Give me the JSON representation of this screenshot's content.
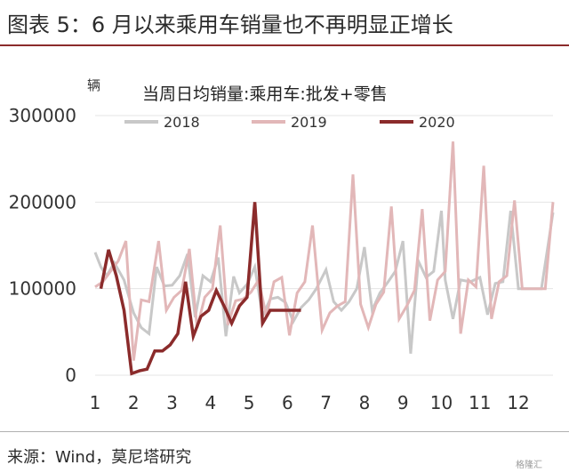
{
  "header": {
    "title": "图表 5：6 月以来乘用车销量也不再明显正增长"
  },
  "footer": {
    "source": "来源：Wind，莫尼塔研究"
  },
  "watermark": "格隆汇",
  "chart_data": {
    "type": "line",
    "title": "当周日均销量:乘用车:批发+零售",
    "ylabel": "辆",
    "ylim": [
      0,
      300000
    ],
    "yticks": [
      0,
      100000,
      200000,
      300000
    ],
    "ytick_labels": [
      "0",
      "100000",
      "200000",
      "300000"
    ],
    "xlim": [
      1,
      12.9
    ],
    "xticks": [
      1,
      2,
      3,
      4,
      5,
      6,
      7,
      8,
      9,
      10,
      11,
      12
    ],
    "xtick_labels": [
      "1",
      "2",
      "3",
      "4",
      "5",
      "6",
      "7",
      "8",
      "9",
      "10",
      "11",
      "12"
    ],
    "legend_position": "top",
    "series": [
      {
        "name": "2018",
        "color": "#c8c8c8",
        "x": [
          1,
          1.15,
          1.3,
          1.5,
          1.75,
          2.0,
          2.2,
          2.4,
          2.6,
          2.8,
          3.0,
          3.2,
          3.4,
          3.6,
          3.8,
          4.0,
          4.2,
          4.4,
          4.6,
          4.75,
          4.95,
          5.15,
          5.35,
          5.55,
          5.75,
          5.95,
          6.15,
          6.35,
          6.55,
          6.75,
          7.0,
          7.2,
          7.4,
          7.6,
          7.8,
          8.0,
          8.2,
          8.4,
          8.6,
          8.8,
          9.0,
          9.2,
          9.4,
          9.6,
          9.8,
          10.0,
          10.1,
          10.3,
          10.5,
          10.75,
          11.0,
          11.2,
          11.4,
          11.6,
          11.8,
          12.0,
          12.2,
          12.4,
          12.6,
          12.9
        ],
        "values": [
          142000,
          125000,
          115000,
          130000,
          110000,
          72000,
          55000,
          48000,
          125000,
          103000,
          104000,
          115000,
          140000,
          67000,
          115000,
          108000,
          136000,
          45000,
          114000,
          95000,
          105000,
          125000,
          68000,
          88000,
          90000,
          84000,
          62000,
          78000,
          87000,
          100000,
          122000,
          85000,
          75000,
          85000,
          100000,
          148000,
          75000,
          95000,
          107000,
          120000,
          155000,
          25000,
          132000,
          113000,
          120000,
          190000,
          110000,
          65000,
          110000,
          108000,
          113000,
          70000,
          106000,
          108000,
          190000,
          100000,
          100000,
          100000,
          100000,
          188000
        ]
      },
      {
        "name": "2019",
        "color": "#e2b7b8",
        "x": [
          1,
          1.2,
          1.4,
          1.6,
          1.8,
          2.0,
          2.2,
          2.4,
          2.65,
          2.85,
          3.05,
          3.25,
          3.45,
          3.65,
          3.85,
          4.05,
          4.25,
          4.45,
          4.65,
          4.85,
          5.05,
          5.25,
          5.45,
          5.65,
          5.85,
          6.05,
          6.25,
          6.45,
          6.65,
          6.9,
          7.1,
          7.3,
          7.5,
          7.7,
          7.9,
          8.1,
          8.3,
          8.5,
          8.7,
          8.9,
          9.1,
          9.3,
          9.5,
          9.7,
          9.9,
          10.1,
          10.3,
          10.5,
          10.7,
          10.9,
          11.1,
          11.3,
          11.5,
          11.7,
          11.9,
          12.1,
          12.3,
          12.5,
          12.7,
          12.9
        ],
        "values": [
          102000,
          108000,
          120000,
          132000,
          155000,
          17000,
          87000,
          85000,
          155000,
          75000,
          90000,
          98000,
          146000,
          55000,
          90000,
          100000,
          173000,
          58000,
          86000,
          88000,
          96000,
          110000,
          68000,
          108000,
          113000,
          46000,
          95000,
          108000,
          173000,
          52000,
          72000,
          80000,
          85000,
          232000,
          82000,
          55000,
          82000,
          96000,
          195000,
          65000,
          80000,
          98000,
          192000,
          63000,
          110000,
          120000,
          270000,
          48000,
          110000,
          102000,
          242000,
          65000,
          108000,
          115000,
          202000,
          100000,
          100000,
          100000,
          100000,
          200000
        ]
      },
      {
        "name": "2020",
        "color": "#8b2b2b",
        "x": [
          1.15,
          1.35,
          1.55,
          1.75,
          1.95,
          2.15,
          2.35,
          2.55,
          2.75,
          2.95,
          3.15,
          3.35,
          3.55,
          3.75,
          3.95,
          4.15,
          4.35,
          4.55,
          4.75,
          4.95,
          5.15,
          5.35,
          5.55,
          5.75,
          5.95,
          6.15,
          6.35
        ],
        "values": [
          100000,
          145000,
          115000,
          75000,
          2000,
          5000,
          7000,
          28000,
          28000,
          35000,
          48000,
          108000,
          45000,
          68000,
          75000,
          98000,
          80000,
          60000,
          80000,
          90000,
          200000,
          60000,
          75000,
          75000,
          75000,
          75000,
          75000
        ]
      }
    ]
  }
}
